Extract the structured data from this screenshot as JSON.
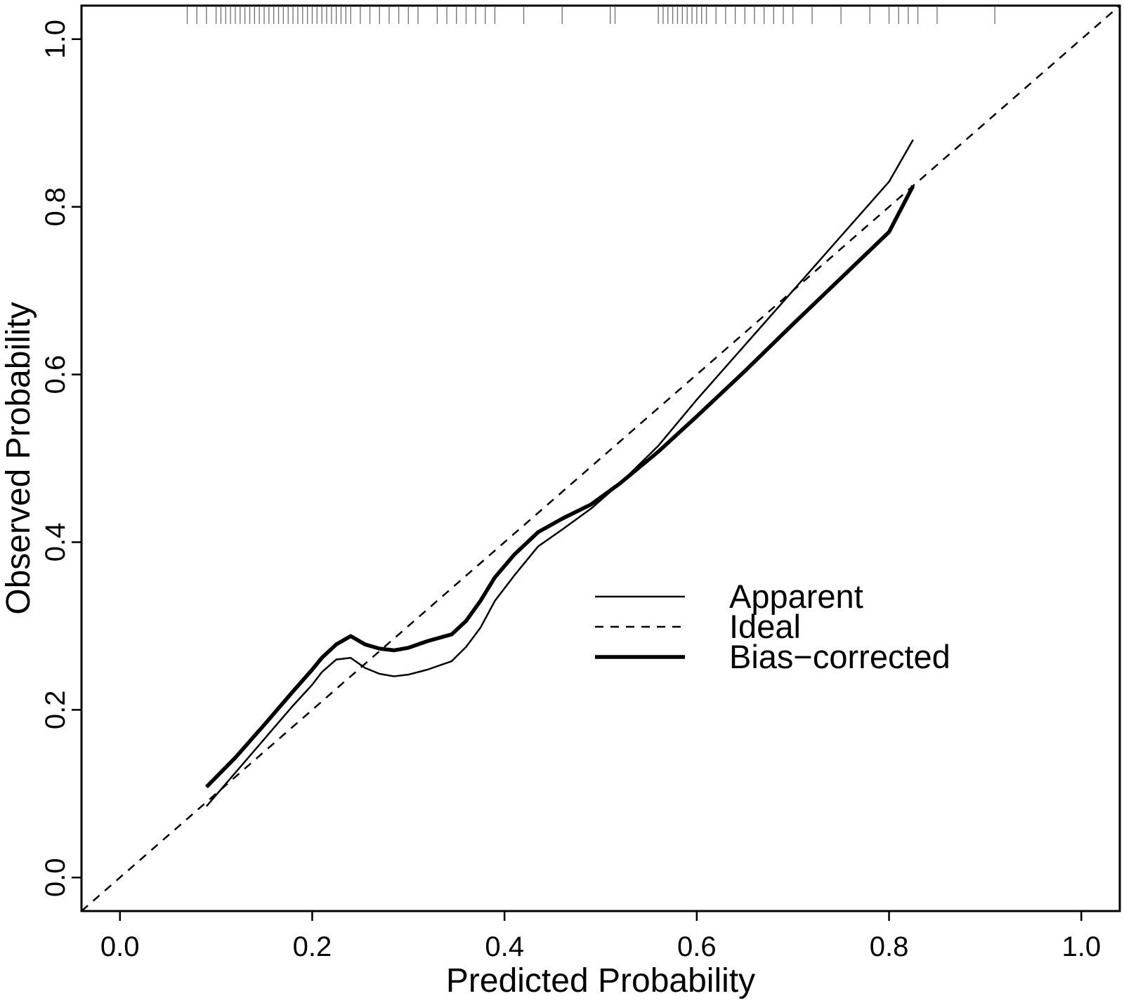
{
  "chart_data": {
    "type": "line",
    "title": "",
    "xlabel": "Predicted Probability",
    "ylabel": "Observed Probability",
    "xlim": [
      -0.04,
      1.04
    ],
    "ylim": [
      -0.04,
      1.04
    ],
    "x_ticks": [
      "0.0",
      "0.2",
      "0.4",
      "0.6",
      "0.8",
      "1.0"
    ],
    "y_ticks": [
      "0.0",
      "0.2",
      "0.4",
      "0.6",
      "0.8",
      "1.0"
    ],
    "grid": false,
    "legend_position": "center-right",
    "series": [
      {
        "name": "Apparent",
        "style": "thin-solid",
        "x": [
          0.09,
          0.12,
          0.15,
          0.18,
          0.2,
          0.21,
          0.225,
          0.24,
          0.255,
          0.27,
          0.285,
          0.3,
          0.32,
          0.345,
          0.36,
          0.375,
          0.39,
          0.41,
          0.435,
          0.46,
          0.49,
          0.52,
          0.56,
          0.6,
          0.65,
          0.7,
          0.75,
          0.8,
          0.825
        ],
        "y": [
          0.085,
          0.125,
          0.165,
          0.205,
          0.23,
          0.245,
          0.26,
          0.262,
          0.25,
          0.243,
          0.24,
          0.242,
          0.248,
          0.258,
          0.275,
          0.298,
          0.33,
          0.36,
          0.395,
          0.415,
          0.44,
          0.47,
          0.515,
          0.57,
          0.635,
          0.7,
          0.765,
          0.83,
          0.88
        ]
      },
      {
        "name": "Ideal",
        "style": "dashed",
        "x": [
          -0.04,
          1.04
        ],
        "y": [
          -0.04,
          1.04
        ]
      },
      {
        "name": "Bias−corrected",
        "style": "thick-solid",
        "x": [
          0.09,
          0.12,
          0.15,
          0.18,
          0.2,
          0.21,
          0.225,
          0.24,
          0.255,
          0.27,
          0.285,
          0.3,
          0.32,
          0.345,
          0.36,
          0.375,
          0.39,
          0.41,
          0.435,
          0.46,
          0.49,
          0.52,
          0.56,
          0.6,
          0.65,
          0.7,
          0.75,
          0.8,
          0.825
        ],
        "y": [
          0.108,
          0.143,
          0.182,
          0.222,
          0.248,
          0.262,
          0.278,
          0.288,
          0.278,
          0.273,
          0.271,
          0.274,
          0.282,
          0.29,
          0.306,
          0.33,
          0.358,
          0.385,
          0.412,
          0.428,
          0.445,
          0.47,
          0.508,
          0.55,
          0.604,
          0.66,
          0.715,
          0.77,
          0.825
        ]
      }
    ],
    "rug_x": [
      0.07,
      0.08,
      0.09,
      0.1,
      0.105,
      0.11,
      0.115,
      0.12,
      0.125,
      0.13,
      0.135,
      0.14,
      0.145,
      0.15,
      0.155,
      0.16,
      0.165,
      0.17,
      0.175,
      0.18,
      0.185,
      0.19,
      0.195,
      0.2,
      0.205,
      0.21,
      0.215,
      0.22,
      0.225,
      0.23,
      0.235,
      0.24,
      0.25,
      0.26,
      0.27,
      0.28,
      0.29,
      0.3,
      0.31,
      0.33,
      0.34,
      0.35,
      0.36,
      0.37,
      0.38,
      0.39,
      0.42,
      0.46,
      0.51,
      0.515,
      0.56,
      0.565,
      0.57,
      0.575,
      0.58,
      0.585,
      0.59,
      0.595,
      0.6,
      0.605,
      0.61,
      0.62,
      0.63,
      0.64,
      0.65,
      0.66,
      0.67,
      0.68,
      0.69,
      0.7,
      0.72,
      0.75,
      0.78,
      0.8,
      0.81,
      0.82,
      0.83,
      0.85,
      0.91
    ]
  }
}
